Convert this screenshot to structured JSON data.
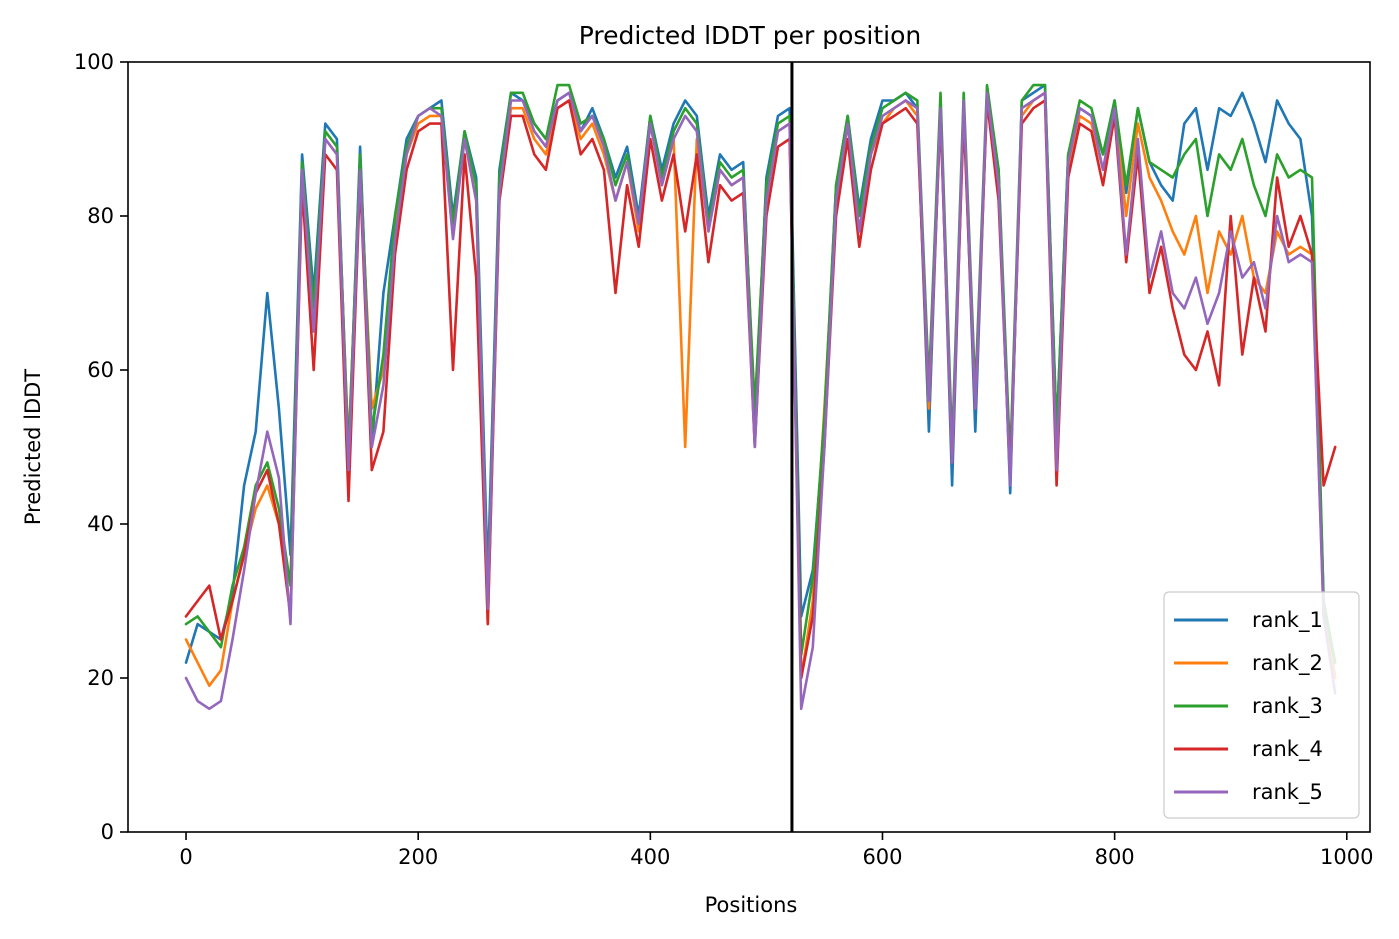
{
  "chart_data": {
    "type": "line",
    "title": "Predicted lDDT per position",
    "xlabel": "Positions",
    "ylabel": "Predicted lDDT",
    "xlim": [
      -50,
      1020
    ],
    "ylim": [
      0,
      100
    ],
    "x_ticks": [
      0,
      200,
      400,
      600,
      800,
      1000
    ],
    "y_ticks": [
      0,
      20,
      40,
      60,
      80,
      100
    ],
    "grid": false,
    "legend_position": "lower-right",
    "vertical_marker": {
      "x": 522,
      "color": "#000000"
    },
    "x_step": 10,
    "series": [
      {
        "name": "rank_1",
        "color": "#1f77b4",
        "x_start": 0,
        "values": [
          22,
          27,
          26,
          25,
          31,
          45,
          52,
          70,
          55,
          36,
          88,
          70,
          92,
          90,
          48,
          89,
          50,
          70,
          80,
          90,
          93,
          94,
          95,
          80,
          91,
          85,
          33,
          86,
          96,
          95,
          92,
          90,
          95,
          96,
          91,
          94,
          90,
          85,
          89,
          80,
          93,
          86,
          92,
          95,
          93,
          80,
          88,
          86,
          87,
          53,
          85,
          93,
          94,
          28,
          34,
          53,
          84,
          93,
          81,
          90,
          95,
          95,
          96,
          94,
          52,
          95,
          45,
          95,
          52,
          96,
          86,
          44,
          95,
          96,
          97,
          52,
          88,
          94,
          93,
          88,
          95,
          83,
          94,
          87,
          84,
          82,
          92,
          94,
          86,
          94,
          93,
          96,
          92,
          87,
          95,
          92,
          90,
          80,
          30,
          20
        ]
      },
      {
        "name": "rank_2",
        "color": "#ff7f0e",
        "x_start": 0,
        "values": [
          25,
          22,
          19,
          21,
          30,
          36,
          42,
          45,
          40,
          32,
          85,
          65,
          90,
          88,
          50,
          86,
          55,
          60,
          78,
          88,
          92,
          93,
          93,
          78,
          90,
          82,
          27,
          82,
          94,
          94,
          90,
          88,
          94,
          95,
          90,
          92,
          88,
          82,
          87,
          78,
          92,
          84,
          90,
          50,
          90,
          78,
          86,
          84,
          85,
          55,
          83,
          91,
          92,
          20,
          30,
          55,
          82,
          92,
          78,
          88,
          92,
          94,
          95,
          93,
          55,
          94,
          48,
          94,
          55,
          95,
          84,
          46,
          93,
          95,
          96,
          48,
          86,
          93,
          92,
          86,
          94,
          80,
          92,
          85,
          82,
          78,
          75,
          80,
          70,
          78,
          75,
          80,
          72,
          70,
          78,
          75,
          76,
          75,
          28,
          20
        ]
      },
      {
        "name": "rank_3",
        "color": "#2ca02c",
        "x_start": 0,
        "values": [
          27,
          28,
          26,
          24,
          32,
          37,
          45,
          48,
          42,
          32,
          87,
          68,
          91,
          89,
          49,
          88,
          52,
          62,
          80,
          89,
          93,
          94,
          94,
          79,
          91,
          84,
          30,
          85,
          96,
          96,
          92,
          90,
          97,
          97,
          92,
          93,
          90,
          84,
          88,
          79,
          93,
          85,
          91,
          94,
          92,
          79,
          87,
          85,
          86,
          55,
          84,
          92,
          93,
          23,
          33,
          54,
          84,
          93,
          80,
          89,
          94,
          95,
          96,
          95,
          58,
          96,
          50,
          96,
          57,
          97,
          86,
          48,
          95,
          97,
          97,
          52,
          88,
          95,
          94,
          88,
          95,
          84,
          94,
          87,
          86,
          85,
          88,
          90,
          80,
          88,
          86,
          90,
          84,
          80,
          88,
          85,
          86,
          85,
          30,
          22
        ]
      },
      {
        "name": "rank_4",
        "color": "#d62728",
        "x_start": 0,
        "values": [
          28,
          30,
          32,
          25,
          30,
          36,
          44,
          47,
          40,
          28,
          84,
          60,
          88,
          86,
          43,
          85,
          47,
          52,
          75,
          86,
          91,
          92,
          92,
          60,
          88,
          72,
          27,
          82,
          93,
          93,
          88,
          86,
          94,
          95,
          88,
          90,
          86,
          70,
          84,
          76,
          90,
          82,
          88,
          78,
          88,
          74,
          84,
          82,
          83,
          50,
          80,
          89,
          90,
          20,
          28,
          50,
          80,
          90,
          76,
          86,
          92,
          93,
          94,
          92,
          56,
          93,
          48,
          93,
          55,
          95,
          82,
          46,
          92,
          94,
          95,
          45,
          85,
          92,
          91,
          84,
          93,
          74,
          88,
          70,
          76,
          68,
          62,
          60,
          65,
          58,
          80,
          62,
          72,
          65,
          85,
          76,
          80,
          75,
          45,
          50
        ]
      },
      {
        "name": "rank_5",
        "color": "#9467bd",
        "x_start": 0,
        "values": [
          20,
          17,
          16,
          17,
          25,
          34,
          44,
          52,
          46,
          27,
          86,
          65,
          90,
          88,
          47,
          86,
          50,
          58,
          77,
          88,
          93,
          94,
          93,
          77,
          90,
          82,
          29,
          83,
          95,
          95,
          91,
          89,
          95,
          96,
          91,
          93,
          89,
          82,
          87,
          79,
          92,
          84,
          90,
          93,
          91,
          78,
          86,
          84,
          85,
          50,
          82,
          91,
          92,
          16,
          24,
          50,
          82,
          92,
          78,
          88,
          93,
          94,
          95,
          94,
          56,
          94,
          48,
          95,
          55,
          96,
          84,
          45,
          94,
          95,
          96,
          47,
          87,
          94,
          93,
          86,
          94,
          75,
          90,
          72,
          78,
          70,
          68,
          72,
          66,
          70,
          78,
          72,
          74,
          68,
          80,
          74,
          75,
          74,
          28,
          18
        ]
      }
    ]
  }
}
